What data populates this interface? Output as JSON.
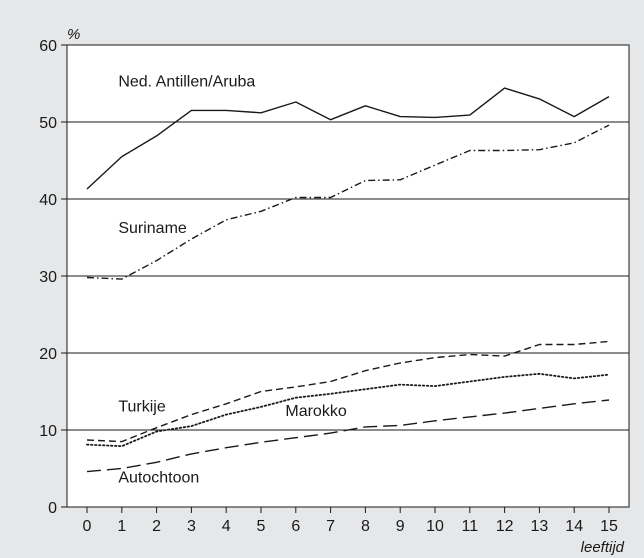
{
  "chart_data": {
    "type": "line",
    "title": "",
    "ylabel": "%",
    "xlabel": "leeftijd",
    "ylim": [
      0,
      60
    ],
    "xlim": [
      0,
      15
    ],
    "x": [
      0,
      1,
      2,
      3,
      4,
      5,
      6,
      7,
      8,
      9,
      10,
      11,
      12,
      13,
      14,
      15
    ],
    "yticks": [
      0,
      10,
      20,
      30,
      40,
      50,
      60
    ],
    "grid": "horizontal lines at 10, 20, 30, 40, 50",
    "series": [
      {
        "name": "Ned. Antillen/Aruba",
        "line_style": "solid",
        "values": [
          41.3,
          45.5,
          48.2,
          51.5,
          51.5,
          51.2,
          52.6,
          50.3,
          52.1,
          50.7,
          50.6,
          50.9,
          54.4,
          53.0,
          50.7,
          53.3
        ]
      },
      {
        "name": "Suriname",
        "line_style": "dash-dot",
        "values": [
          29.8,
          29.6,
          32.0,
          34.8,
          37.3,
          38.4,
          40.2,
          40.2,
          42.4,
          42.5,
          44.4,
          46.3,
          46.3,
          46.4,
          47.3,
          49.6
        ]
      },
      {
        "name": "Turkije",
        "line_style": "short-dash",
        "values": [
          8.7,
          8.5,
          10.3,
          12.0,
          13.4,
          15.0,
          15.6,
          16.3,
          17.7,
          18.7,
          19.4,
          19.8,
          19.6,
          21.1,
          21.1,
          21.5
        ]
      },
      {
        "name": "Marokko",
        "line_style": "dotted",
        "values": [
          8.1,
          7.9,
          9.8,
          10.5,
          12.0,
          13.0,
          14.2,
          14.7,
          15.3,
          15.9,
          15.7,
          16.3,
          16.9,
          17.3,
          16.7,
          17.2
        ]
      },
      {
        "name": "Autochtoon",
        "line_style": "long-dash",
        "values": [
          4.6,
          5.0,
          5.8,
          6.9,
          7.7,
          8.4,
          9.0,
          9.6,
          10.4,
          10.6,
          11.2,
          11.7,
          12.2,
          12.8,
          13.4,
          13.9
        ]
      }
    ],
    "series_label_order_note_colors": {
      "line": "#1a1a1a",
      "background": "#e6e7e8",
      "plot_background": "#ffffff"
    }
  }
}
